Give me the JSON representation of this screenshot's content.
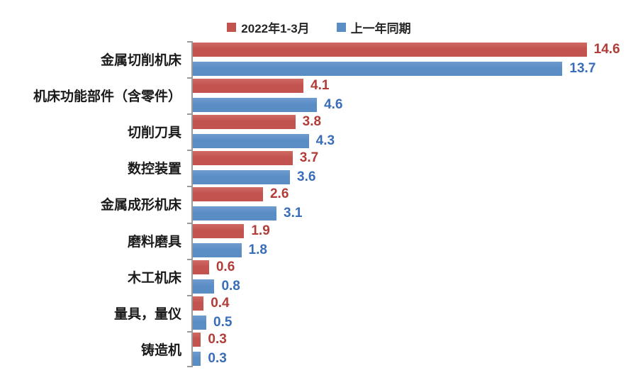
{
  "chart_data": {
    "type": "bar",
    "orientation": "horizontal",
    "categories": [
      "金属切削机床",
      "机床功能部件（含零件）",
      "切削刀具",
      "数控装置",
      "金属成形机床",
      "磨料磨具",
      "木工机床",
      "量具，量仪",
      "铸造机"
    ],
    "series": [
      {
        "name": "2022年1-3月",
        "color": "#c3534e",
        "color_top": "#cf6a64",
        "label_color": "#b23c38",
        "values": [
          14.6,
          4.1,
          3.8,
          3.7,
          2.6,
          1.9,
          0.6,
          0.4,
          0.3
        ]
      },
      {
        "name": "上一年同期",
        "color": "#5b8dc5",
        "color_top": "#6f9cd0",
        "label_color": "#3a6db7",
        "values": [
          13.7,
          4.6,
          4.3,
          3.6,
          3.1,
          1.8,
          0.8,
          0.5,
          0.3
        ]
      }
    ],
    "xlim": [
      0,
      16.5
    ],
    "grid": false,
    "legend_position": "top",
    "axis_color": "#9a9a9a"
  }
}
